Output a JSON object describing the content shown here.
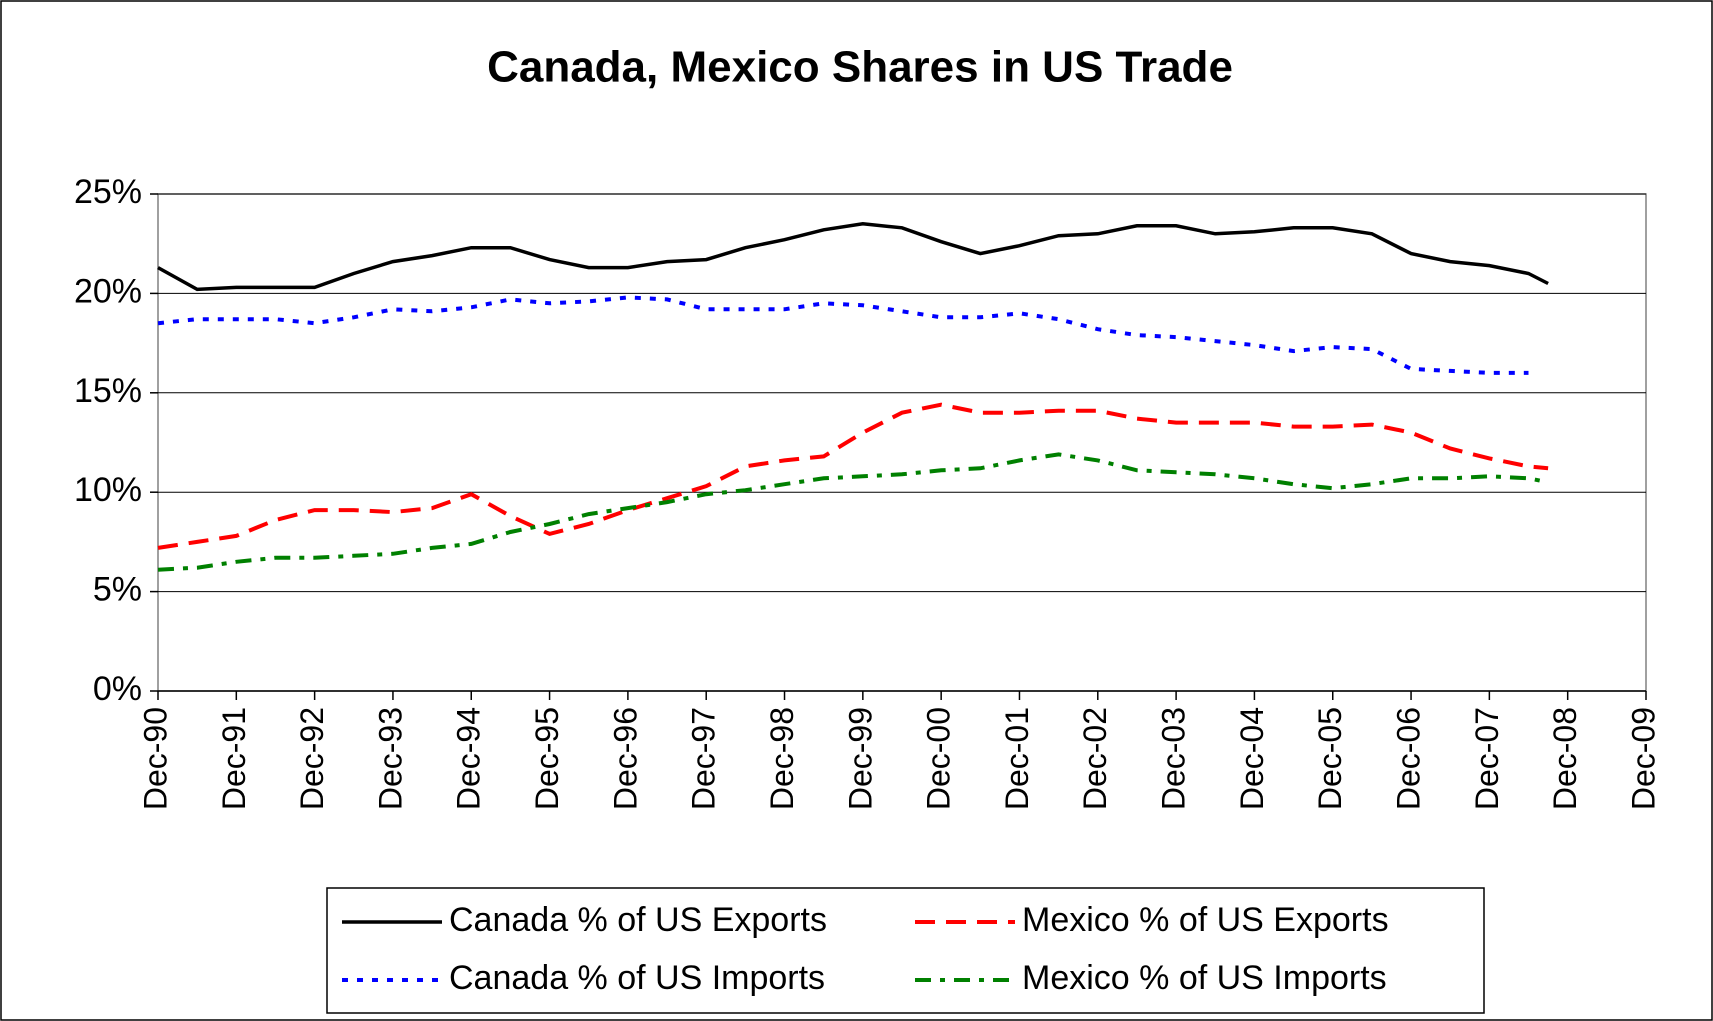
{
  "chart_data": {
    "type": "line",
    "title": "Canada, Mexico Shares in US Trade",
    "x": [
      "1990-12",
      "1991-06",
      "1991-12",
      "1992-06",
      "1992-12",
      "1993-06",
      "1993-12",
      "1994-06",
      "1994-12",
      "1995-06",
      "1995-12",
      "1996-06",
      "1996-12",
      "1997-06",
      "1997-12",
      "1998-06",
      "1998-12",
      "1999-06",
      "1999-12",
      "2000-06",
      "2000-12",
      "2001-06",
      "2001-12",
      "2002-06",
      "2002-12",
      "2003-06",
      "2003-12",
      "2004-06",
      "2004-12",
      "2005-06",
      "2005-12",
      "2006-06",
      "2006-12",
      "2007-06",
      "2007-12",
      "2008-06",
      "2008-09"
    ],
    "series": [
      {
        "name": "Canada % of US Exports",
        "color": "#000000",
        "dash": "solid",
        "values": [
          21.3,
          20.2,
          20.3,
          20.3,
          20.3,
          21.0,
          21.6,
          21.9,
          22.3,
          22.3,
          21.7,
          21.3,
          21.3,
          21.6,
          21.7,
          22.3,
          22.7,
          23.2,
          23.5,
          23.3,
          22.6,
          22.0,
          22.4,
          22.9,
          23.0,
          23.4,
          23.4,
          23.0,
          23.1,
          23.3,
          23.3,
          23.0,
          22.0,
          21.6,
          21.4,
          21.0,
          20.5
        ]
      },
      {
        "name": "Mexico % of US Exports",
        "color": "#ff0000",
        "dash": "dashed",
        "values": [
          7.2,
          7.5,
          7.8,
          8.6,
          9.1,
          9.1,
          9.0,
          9.2,
          9.9,
          8.8,
          7.9,
          8.4,
          9.1,
          9.7,
          10.3,
          11.3,
          11.6,
          11.8,
          13.0,
          14.0,
          14.4,
          14.0,
          14.0,
          14.1,
          14.1,
          13.7,
          13.5,
          13.5,
          13.5,
          13.3,
          13.3,
          13.4,
          13.0,
          12.2,
          11.7,
          11.3,
          11.2
        ]
      },
      {
        "name": "Canada % of US Imports",
        "color": "#0000ff",
        "dash": "dotted",
        "values": [
          18.5,
          18.7,
          18.7,
          18.7,
          18.5,
          18.8,
          19.2,
          19.1,
          19.3,
          19.7,
          19.5,
          19.6,
          19.8,
          19.7,
          19.2,
          19.2,
          19.2,
          19.5,
          19.4,
          19.1,
          18.8,
          18.8,
          19.0,
          18.7,
          18.2,
          17.9,
          17.8,
          17.6,
          17.4,
          17.1,
          17.3,
          17.2,
          16.2,
          16.1,
          16.0,
          16.0,
          null
        ]
      },
      {
        "name": "Mexico % of US Imports",
        "color": "#008000",
        "dash": "dashdot",
        "values": [
          6.1,
          6.2,
          6.5,
          6.7,
          6.7,
          6.8,
          6.9,
          7.2,
          7.4,
          8.0,
          8.4,
          8.9,
          9.2,
          9.5,
          9.9,
          10.1,
          10.4,
          10.7,
          10.8,
          10.9,
          11.1,
          11.2,
          11.6,
          11.9,
          11.6,
          11.1,
          11.0,
          10.9,
          10.7,
          10.4,
          10.2,
          10.4,
          10.7,
          10.7,
          10.8,
          10.7,
          10.5
        ]
      }
    ],
    "xlim": [
      "1990-12",
      "2009-12"
    ],
    "xticks": [
      {
        "value": "1990-12",
        "label": "Dec-90"
      },
      {
        "value": "1991-12",
        "label": "Dec-91"
      },
      {
        "value": "1992-12",
        "label": "Dec-92"
      },
      {
        "value": "1993-12",
        "label": "Dec-93"
      },
      {
        "value": "1994-12",
        "label": "Dec-94"
      },
      {
        "value": "1995-12",
        "label": "Dec-95"
      },
      {
        "value": "1996-12",
        "label": "Dec-96"
      },
      {
        "value": "1997-12",
        "label": "Dec-97"
      },
      {
        "value": "1998-12",
        "label": "Dec-98"
      },
      {
        "value": "1999-12",
        "label": "Dec-99"
      },
      {
        "value": "2000-12",
        "label": "Dec-00"
      },
      {
        "value": "2001-12",
        "label": "Dec-01"
      },
      {
        "value": "2002-12",
        "label": "Dec-02"
      },
      {
        "value": "2003-12",
        "label": "Dec-03"
      },
      {
        "value": "2004-12",
        "label": "Dec-04"
      },
      {
        "value": "2005-12",
        "label": "Dec-05"
      },
      {
        "value": "2006-12",
        "label": "Dec-06"
      },
      {
        "value": "2007-12",
        "label": "Dec-07"
      },
      {
        "value": "2008-12",
        "label": "Dec-08"
      },
      {
        "value": "2009-12",
        "label": "Dec-09"
      }
    ],
    "ylim": [
      0,
      25
    ],
    "yticks": [
      {
        "value": 0,
        "label": "0%"
      },
      {
        "value": 5,
        "label": "5%"
      },
      {
        "value": 10,
        "label": "10%"
      },
      {
        "value": 15,
        "label": "15%"
      },
      {
        "value": 20,
        "label": "20%"
      },
      {
        "value": 25,
        "label": "25%"
      }
    ],
    "grid": true,
    "legend": "bottom"
  }
}
